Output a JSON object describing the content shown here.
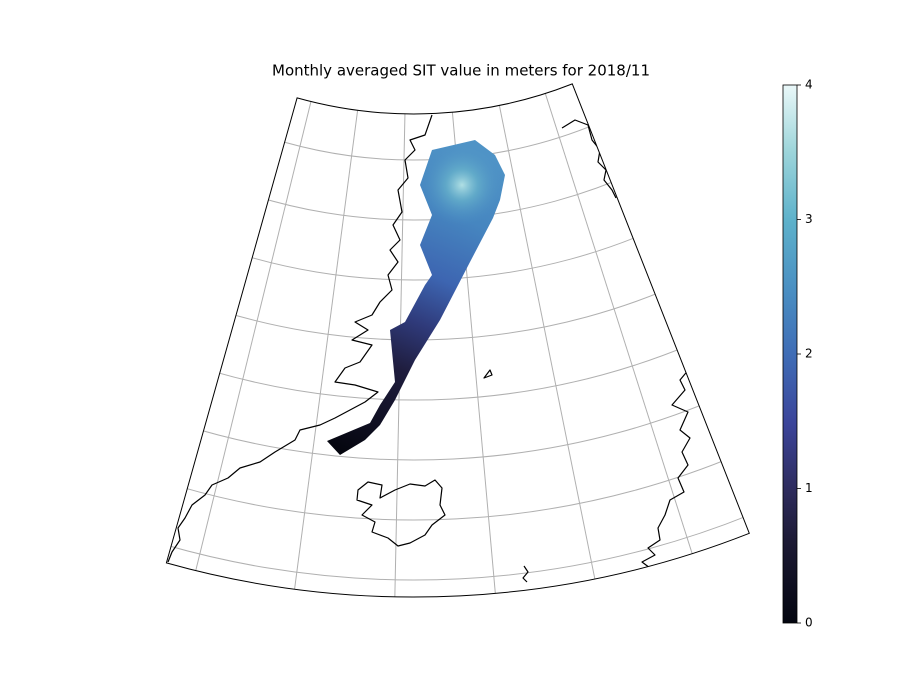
{
  "map": {
    "title": "Monthly averaged SIT value in meters for 2018/11",
    "colorbar": {
      "lim": [
        0,
        4
      ],
      "ticks": [
        0,
        1,
        2,
        3,
        4
      ]
    }
  }
}
